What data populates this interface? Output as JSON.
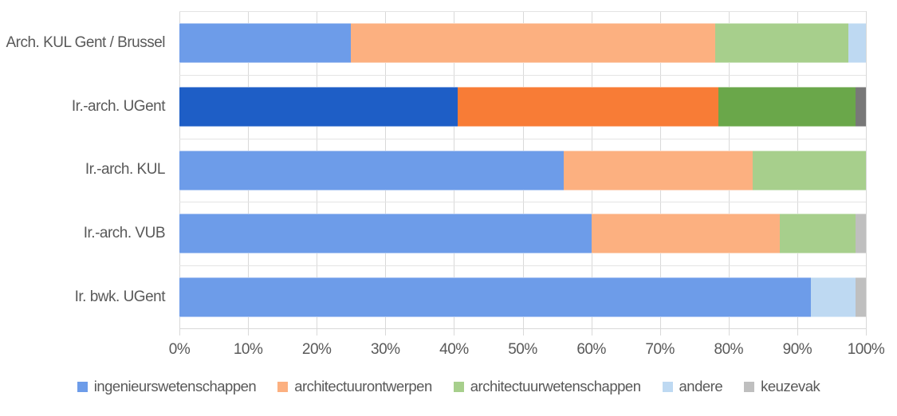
{
  "chart_data": {
    "type": "bar",
    "orientation": "horizontal",
    "stacked": true,
    "unit": "percent",
    "title": "",
    "categories": [
      "Arch. KUL Gent / Brussel",
      "Ir.-arch. UGent",
      "Ir.-arch. KUL",
      "Ir.-arch. VUB",
      "Ir. bwk. UGent"
    ],
    "series": [
      {
        "name": "ingenieurswetenschappen",
        "color": "#6d9ce9",
        "highlight_color": "#1e5ec6",
        "values": [
          25,
          40.5,
          56,
          60,
          92
        ]
      },
      {
        "name": "architectuurontwerpen",
        "color": "#fcb080",
        "highlight_color": "#f87c36",
        "values": [
          53,
          38,
          27.5,
          27.5,
          0
        ]
      },
      {
        "name": "architectuurwetenschappen",
        "color": "#a7cf8c",
        "highlight_color": "#6aa74a",
        "values": [
          19.5,
          20,
          16.5,
          11,
          0
        ]
      },
      {
        "name": "andere",
        "color": "#bed9f2",
        "highlight_color": null,
        "values": [
          2.5,
          0,
          0,
          0,
          6.5
        ]
      },
      {
        "name": "keuzevak",
        "color": "#bfbfbf",
        "highlight_color": "#787878",
        "values": [
          0,
          1.5,
          0,
          1.5,
          1.5
        ]
      }
    ],
    "highlighted_category": "Ir.-arch. UGent",
    "highlighted_index": 1,
    "x_axis": {
      "min": 0,
      "max": 100,
      "tick_step": 10,
      "tick_labels": [
        "0%",
        "10%",
        "20%",
        "30%",
        "40%",
        "50%",
        "60%",
        "70%",
        "80%",
        "90%",
        "100%"
      ]
    },
    "grid": true,
    "legend_position": "bottom",
    "legend": [
      "ingenieurswetenschappen",
      "architectuurontwerpen",
      "architectuurwetenschappen",
      "andere",
      "keuzevak"
    ]
  },
  "styles": {
    "grid_color": "#d9d9d9",
    "row_divider_color": "#e4e4e4",
    "text_color": "#595959",
    "background": "#ffffff"
  }
}
